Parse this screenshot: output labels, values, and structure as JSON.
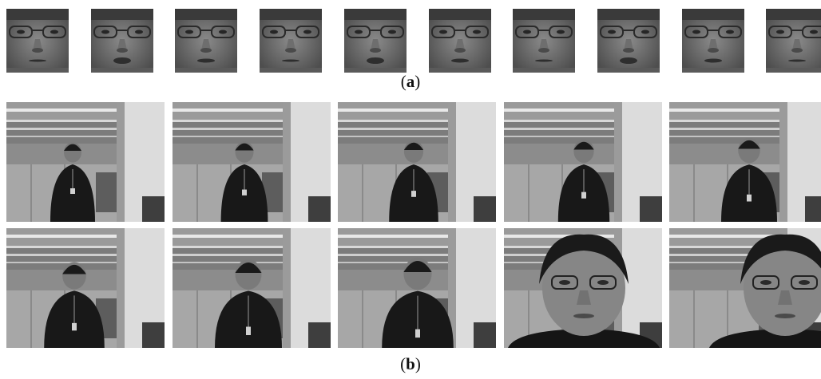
{
  "figure": {
    "panel_a": {
      "caption_open": "(",
      "caption_letter": "a",
      "caption_close": ")",
      "frame_count": 10
    },
    "panel_b": {
      "caption_open": "(",
      "caption_letter": "b",
      "caption_close": ")",
      "frame_count": 10
    }
  }
}
